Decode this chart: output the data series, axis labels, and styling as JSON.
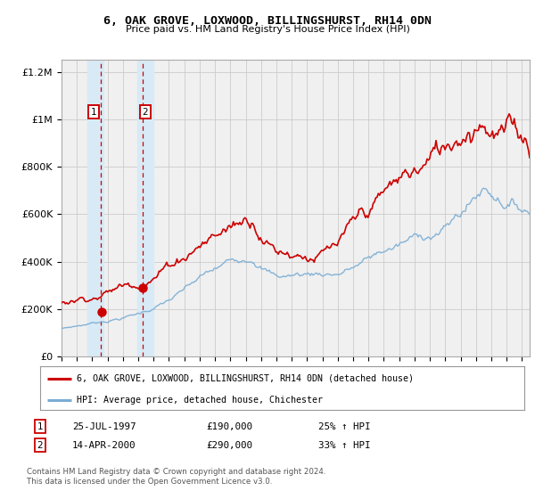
{
  "title1": "6, OAK GROVE, LOXWOOD, BILLINGSHURST, RH14 0DN",
  "title2": "Price paid vs. HM Land Registry's House Price Index (HPI)",
  "hpi_label": "HPI: Average price, detached house, Chichester",
  "property_label": "6, OAK GROVE, LOXWOOD, BILLINGSHURST, RH14 0DN (detached house)",
  "sale1_date": "25-JUL-1997",
  "sale1_price": 190000,
  "sale1_pct": "25% ↑ HPI",
  "sale1_year": 1997.56,
  "sale2_date": "14-APR-2000",
  "sale2_price": 290000,
  "sale2_pct": "33% ↑ HPI",
  "sale2_year": 2000.29,
  "copyright_text": "Contains HM Land Registry data © Crown copyright and database right 2024.\nThis data is licensed under the Open Government Licence v3.0.",
  "background_color": "#ffffff",
  "plot_bg_color": "#f0f0f0",
  "hpi_line_color": "#7aadd4",
  "property_line_color": "#cc0000",
  "sale_dot_color": "#cc0000",
  "vline_color": "#cc0000",
  "shade1_color": "#d8eaf5",
  "shade2_color": "#d8eaf5",
  "xmin": 1995.0,
  "xmax": 2025.5,
  "ymin": 0,
  "ymax": 1250000,
  "yticks": [
    0,
    200000,
    400000,
    600000,
    800000,
    1000000,
    1200000
  ],
  "ytick_labels": [
    "£0",
    "£200K",
    "£400K",
    "£600K",
    "£800K",
    "£1M",
    "£1.2M"
  ],
  "xticks": [
    1995,
    1996,
    1997,
    1998,
    1999,
    2000,
    2001,
    2002,
    2003,
    2004,
    2005,
    2006,
    2007,
    2008,
    2009,
    2010,
    2011,
    2012,
    2013,
    2014,
    2015,
    2016,
    2017,
    2018,
    2019,
    2020,
    2021,
    2022,
    2023,
    2024,
    2025
  ]
}
